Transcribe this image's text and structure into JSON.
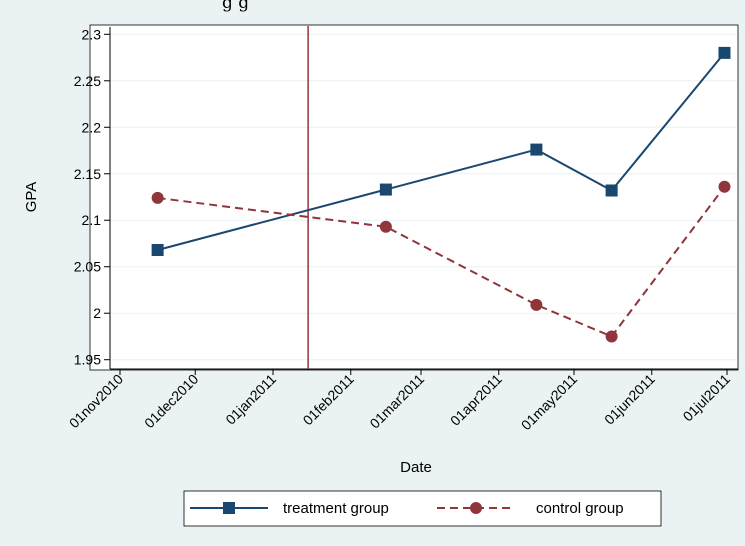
{
  "header_fragment": "g                                        g",
  "chart_data": {
    "type": "line",
    "title": "",
    "xlabel": "Date",
    "ylabel": "GPA",
    "x_ticks": [
      "01nov2010",
      "01dec2010",
      "01jan2011",
      "01feb2011",
      "01mar2011",
      "01apr2011",
      "01may2011",
      "01jun2011",
      "01jul2011"
    ],
    "xlim": [
      "2010-11-01",
      "2011-07-05"
    ],
    "ylim": [
      1.94,
      2.31
    ],
    "y_ticks": [
      1.95,
      2,
      2.05,
      2.1,
      2.15,
      2.2,
      2.25,
      2.3
    ],
    "y_tick_labels": [
      "1.95",
      "2",
      "2.05",
      "2.1",
      "2.15",
      "2.2",
      "2.25",
      "2.3"
    ],
    "vertical_line": "2011-01-15",
    "grid": "horizontal",
    "legend_position": "bottom",
    "series": [
      {
        "name": "treatment group",
        "color": "#1a476f",
        "marker": "square",
        "line": "solid",
        "x": [
          "2010-11-16",
          "2011-02-15",
          "2011-04-16",
          "2011-05-16",
          "2011-06-30"
        ],
        "y": [
          2.068,
          2.133,
          2.176,
          2.132,
          2.28
        ]
      },
      {
        "name": "control group",
        "color": "#90353b",
        "marker": "circle",
        "line": "dashed",
        "x": [
          "2010-11-16",
          "2011-02-15",
          "2011-04-16",
          "2011-05-16",
          "2011-06-30"
        ],
        "y": [
          2.124,
          2.093,
          2.009,
          1.975,
          2.136
        ]
      }
    ]
  }
}
